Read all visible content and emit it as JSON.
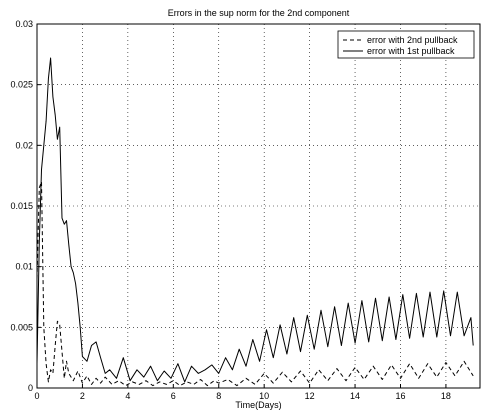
{
  "chart_data": {
    "type": "line",
    "title": "Errors in the sup norm for the 2nd component",
    "xlabel": "Time(Days)",
    "ylabel": "",
    "xlim": [
      0,
      19.5
    ],
    "ylim": [
      0,
      0.03
    ],
    "xticks": [
      "0",
      "2",
      "4",
      "6",
      "8",
      "10",
      "12",
      "14",
      "16",
      "18"
    ],
    "yticks": [
      "0",
      "0.005",
      "0.01",
      "0.015",
      "0.02",
      "0.025",
      "0.03"
    ],
    "grid": true,
    "legend_position": "top-right",
    "series": [
      {
        "name": "error with 2nd pullback",
        "line_style": "dashed",
        "color": "#000000",
        "x": [
          0,
          0.1,
          0.2,
          0.3,
          0.4,
          0.5,
          0.6,
          0.7,
          0.8,
          0.9,
          1.0,
          1.1,
          1.2,
          1.3,
          1.4,
          1.6,
          1.8,
          2.0,
          2.2,
          2.4,
          2.6,
          2.8,
          3.0,
          3.3,
          3.6,
          3.9,
          4.2,
          4.5,
          4.8,
          5.1,
          5.4,
          5.7,
          6.0,
          6.3,
          6.6,
          6.9,
          7.2,
          7.5,
          7.8,
          8.0,
          8.4,
          8.8,
          9.2,
          9.6,
          10.0,
          10.4,
          10.8,
          11.2,
          11.6,
          12.0,
          12.4,
          12.8,
          13.2,
          13.6,
          14.0,
          14.4,
          14.8,
          15.2,
          15.6,
          16.0,
          16.4,
          16.8,
          17.2,
          17.6,
          18.0,
          18.4,
          18.8,
          19.2
        ],
        "y": [
          0.009,
          0.0165,
          0.017,
          0.005,
          0.002,
          0.0005,
          0.0015,
          0.0012,
          0.0035,
          0.0055,
          0.0052,
          0.003,
          0.0008,
          0.0022,
          0.0012,
          0.0006,
          0.0014,
          0.0004,
          0.001,
          0.0003,
          0.0008,
          0.0004,
          0.0009,
          0.0003,
          0.0006,
          0.0002,
          0.0005,
          0.0003,
          0.0006,
          0.0002,
          0.0005,
          0.0003,
          0.0006,
          0.0002,
          0.0005,
          0.0003,
          0.0007,
          0.0002,
          0.0006,
          0.0004,
          0.0007,
          0.0002,
          0.0008,
          0.0003,
          0.0012,
          0.0004,
          0.0013,
          0.0005,
          0.0014,
          0.0004,
          0.0015,
          0.0006,
          0.0016,
          0.0006,
          0.0017,
          0.0007,
          0.0018,
          0.0007,
          0.0019,
          0.0008,
          0.002,
          0.0008,
          0.002,
          0.0009,
          0.0021,
          0.001,
          0.0022,
          0.001
        ]
      },
      {
        "name": "error with 1st pullback",
        "line_style": "solid",
        "color": "#000000",
        "x": [
          0,
          0.1,
          0.2,
          0.3,
          0.4,
          0.5,
          0.6,
          0.7,
          0.8,
          0.9,
          1.0,
          1.1,
          1.2,
          1.3,
          1.4,
          1.5,
          1.6,
          1.7,
          1.8,
          1.9,
          2.0,
          2.2,
          2.4,
          2.6,
          2.8,
          3.0,
          3.2,
          3.5,
          3.8,
          4.1,
          4.4,
          4.7,
          5.0,
          5.3,
          5.6,
          5.9,
          6.2,
          6.5,
          6.8,
          7.1,
          7.4,
          7.7,
          8.0,
          8.3,
          8.6,
          8.9,
          9.2,
          9.5,
          9.8,
          10.1,
          10.4,
          10.7,
          11.0,
          11.3,
          11.6,
          11.9,
          12.2,
          12.5,
          12.8,
          13.1,
          13.4,
          13.7,
          14.0,
          14.3,
          14.6,
          14.9,
          15.2,
          15.5,
          15.8,
          16.1,
          16.4,
          16.7,
          17.0,
          17.3,
          17.6,
          17.9,
          18.2,
          18.5,
          18.8,
          19.1,
          19.2
        ],
        "y": [
          0.002,
          0.012,
          0.018,
          0.02,
          0.022,
          0.0255,
          0.0272,
          0.024,
          0.0225,
          0.0205,
          0.0215,
          0.014,
          0.0135,
          0.0138,
          0.0118,
          0.01,
          0.0095,
          0.0086,
          0.007,
          0.005,
          0.0026,
          0.0022,
          0.0035,
          0.0038,
          0.0025,
          0.0012,
          0.0015,
          0.0008,
          0.0025,
          0.0006,
          0.0015,
          0.0009,
          0.0018,
          0.0006,
          0.0014,
          0.0008,
          0.002,
          0.0005,
          0.0018,
          0.0012,
          0.0015,
          0.0019,
          0.0012,
          0.0025,
          0.0015,
          0.0032,
          0.0018,
          0.004,
          0.0022,
          0.0048,
          0.0025,
          0.0052,
          0.0028,
          0.0058,
          0.003,
          0.006,
          0.0032,
          0.0064,
          0.0034,
          0.0067,
          0.0035,
          0.007,
          0.0037,
          0.0072,
          0.0038,
          0.0074,
          0.0039,
          0.0075,
          0.004,
          0.0077,
          0.0041,
          0.0078,
          0.0042,
          0.0079,
          0.0042,
          0.008,
          0.0043,
          0.0079,
          0.0043,
          0.0058,
          0.0035
        ]
      }
    ]
  }
}
